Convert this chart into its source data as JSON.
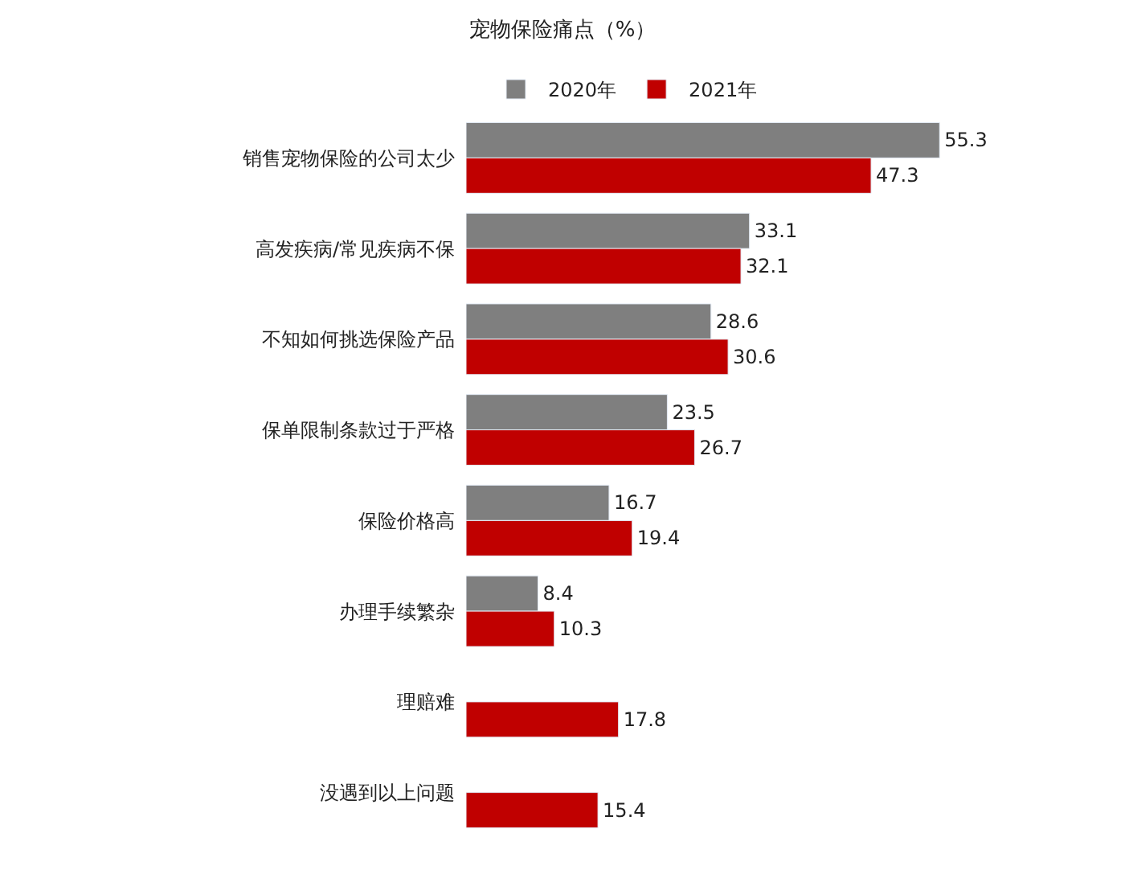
{
  "chart_data": {
    "type": "bar",
    "orientation": "horizontal",
    "title": "宠物保险痛点（%）",
    "categories": [
      "销售宠物保险的公司太少",
      "高发疾病/常见疾病不保",
      "不知如何挑选保险产品",
      "保单限制条款过于严格",
      "保险价格高",
      "办理手续繁杂",
      "理赔难",
      "没遇到以上问题"
    ],
    "series": [
      {
        "name": "2020年",
        "color": "#7f7f7f",
        "values": [
          55.3,
          33.1,
          28.6,
          23.5,
          16.7,
          8.4,
          null,
          null
        ]
      },
      {
        "name": "2021年",
        "color": "#c00000",
        "values": [
          47.3,
          32.1,
          30.6,
          26.7,
          19.4,
          10.3,
          17.8,
          15.4
        ]
      }
    ],
    "data_labels": true,
    "legend": "top"
  }
}
